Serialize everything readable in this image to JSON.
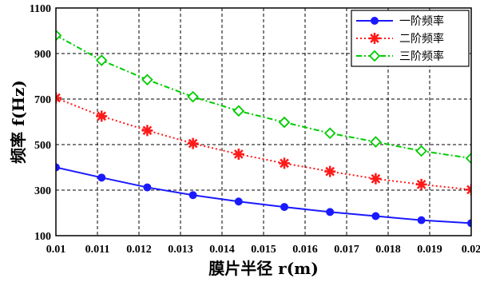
{
  "chart_data": {
    "type": "line",
    "xlabel": "膜片半径 r(m)",
    "ylabel": "频率 f(Hz)",
    "xlim": [
      0.01,
      0.02
    ],
    "ylim": [
      100,
      1100
    ],
    "x_ticks": [
      "0.01",
      "0.011",
      "0.012",
      "0.013",
      "0.014",
      "0.015",
      "0.016",
      "0.017",
      "0.018",
      "0.019",
      "0.02"
    ],
    "y_ticks": [
      "100",
      "300",
      "500",
      "700",
      "900",
      "1100"
    ],
    "grid": true,
    "legend_position": "top-right",
    "x": [
      0.01,
      0.0111,
      0.0122,
      0.0133,
      0.0144,
      0.0155,
      0.0166,
      0.0177,
      0.0188,
      0.02
    ],
    "series": [
      {
        "name": "一阶频率",
        "color": "#1a1aff",
        "marker": "filled-circle",
        "line_style": "solid",
        "values": [
          400,
          355,
          312,
          278,
          250,
          226,
          204,
          186,
          168,
          155
        ]
      },
      {
        "name": "二阶频率",
        "color": "#ff1a1a",
        "marker": "star",
        "line_style": "dotted",
        "values": [
          705,
          625,
          562,
          505,
          458,
          418,
          382,
          350,
          325,
          302
        ]
      },
      {
        "name": "三阶频率",
        "color": "#00cc00",
        "marker": "diamond",
        "line_style": "dash-dot",
        "values": [
          980,
          870,
          785,
          710,
          648,
          598,
          550,
          512,
          472,
          440
        ]
      }
    ]
  }
}
